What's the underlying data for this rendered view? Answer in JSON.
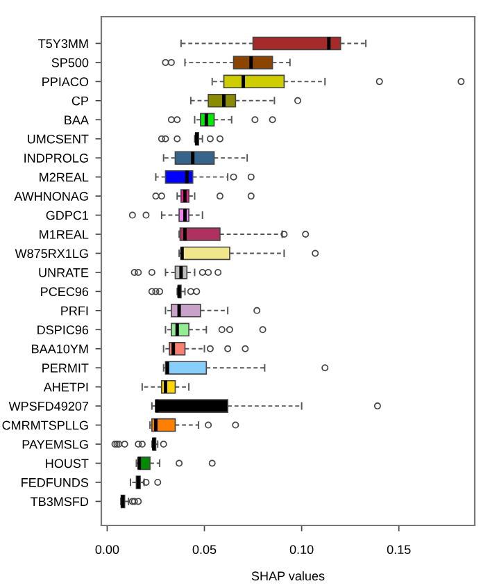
{
  "chart_data": {
    "type": "box",
    "orientation": "horizontal",
    "xlabel": "SHAP values",
    "grid": false,
    "legend": false,
    "xlim": [
      -0.003,
      0.189
    ],
    "xticks": [
      {
        "value": 0,
        "label": "0.00"
      },
      {
        "value": 0.05,
        "label": "0.05"
      },
      {
        "value": 0.1,
        "label": "0.10"
      },
      {
        "value": 0.15,
        "label": "0.15"
      }
    ],
    "categories": [
      "T5Y3MM",
      "SP500",
      "PPIACO",
      "CP",
      "BAA",
      "UMCSENT",
      "INDPROLG",
      "M2REAL",
      "AWHNONAG",
      "GDPC1",
      "M1REAL",
      "W875RX1LG",
      "UNRATE",
      "PCEC96",
      "PRFI",
      "DSPIC96",
      "BAA10YM",
      "PERMIT",
      "AHETPI",
      "WPSFD49207",
      "CMRMTSPLLG",
      "PAYEMSLG",
      "HOUST",
      "FEDFUNDS",
      "TB3MSFD"
    ],
    "colors": [
      "#a52a2a",
      "#8b4500",
      "#cdcd00",
      "#8b8b00",
      "#00ee00",
      "#00868b",
      "#36648b",
      "#0000ff",
      "#ff1493",
      "#ee82ee",
      "#b03060",
      "#f0e68c",
      "#bebebe",
      "#cd853f",
      "#c8a2c8",
      "#90ee90",
      "#fa8072",
      "#87cefa",
      "#ffd700",
      "#000000",
      "#ff7f00",
      "#000000",
      "#008b00",
      "#8b0000",
      "#1874cd"
    ],
    "boxes": [
      {
        "low": 0.038,
        "q1": 0.075,
        "median": 0.114,
        "q3": 0.12,
        "high": 0.133
      },
      {
        "low": 0.04,
        "q1": 0.065,
        "median": 0.074,
        "q3": 0.085,
        "high": 0.094,
        "outliers": [
          0.03,
          0.033
        ]
      },
      {
        "low": 0.054,
        "q1": 0.06,
        "median": 0.07,
        "q3": 0.091,
        "high": 0.112,
        "outliers": [
          0.14,
          0.182
        ]
      },
      {
        "low": 0.043,
        "q1": 0.052,
        "median": 0.06,
        "q3": 0.066,
        "high": 0.086,
        "outliers": [
          0.098
        ]
      },
      {
        "low": 0.045,
        "q1": 0.048,
        "median": 0.051,
        "q3": 0.055,
        "high": 0.064,
        "outliers": [
          0.033,
          0.036,
          0.076,
          0.085
        ]
      },
      {
        "low": 0.045,
        "q1": 0.0455,
        "median": 0.046,
        "q3": 0.047,
        "high": 0.049,
        "outliers": [
          0.028,
          0.03,
          0.036,
          0.053,
          0.058
        ]
      },
      {
        "low": 0.029,
        "q1": 0.035,
        "median": 0.044,
        "q3": 0.055,
        "high": 0.072
      },
      {
        "low": 0.025,
        "q1": 0.03,
        "median": 0.041,
        "q3": 0.044,
        "high": 0.062,
        "outliers": [
          0.065,
          0.074
        ]
      },
      {
        "low": 0.036,
        "q1": 0.038,
        "median": 0.04,
        "q3": 0.042,
        "high": 0.045,
        "outliers": [
          0.025,
          0.028,
          0.058,
          0.074
        ]
      },
      {
        "low": 0.028,
        "q1": 0.037,
        "median": 0.04,
        "q3": 0.042,
        "high": 0.049,
        "outliers": [
          0.013,
          0.02
        ]
      },
      {
        "low": 0.037,
        "q1": 0.0375,
        "median": 0.04,
        "q3": 0.058,
        "high": 0.09,
        "outliers": [
          0.091,
          0.102
        ]
      },
      {
        "low": 0.037,
        "q1": 0.038,
        "median": 0.0385,
        "q3": 0.063,
        "high": 0.091,
        "outliers": [
          0.107
        ]
      },
      {
        "low": 0.03,
        "q1": 0.035,
        "median": 0.038,
        "q3": 0.041,
        "high": 0.045,
        "outliers": [
          0.014,
          0.016,
          0.023,
          0.049,
          0.052,
          0.057
        ]
      },
      {
        "low": 0.036,
        "q1": 0.0365,
        "median": 0.037,
        "q3": 0.038,
        "high": 0.04,
        "outliers": [
          0.023,
          0.025,
          0.027,
          0.043,
          0.046
        ]
      },
      {
        "low": 0.03,
        "q1": 0.033,
        "median": 0.037,
        "q3": 0.048,
        "high": 0.062,
        "outliers": [
          0.077
        ]
      },
      {
        "low": 0.03,
        "q1": 0.033,
        "median": 0.036,
        "q3": 0.042,
        "high": 0.051,
        "outliers": [
          0.059,
          0.063,
          0.08
        ]
      },
      {
        "low": 0.029,
        "q1": 0.032,
        "median": 0.034,
        "q3": 0.04,
        "high": 0.05,
        "outliers": [
          0.053,
          0.062,
          0.071
        ]
      },
      {
        "low": 0.029,
        "q1": 0.03,
        "median": 0.031,
        "q3": 0.051,
        "high": 0.081,
        "outliers": [
          0.112
        ]
      },
      {
        "low": 0.018,
        "q1": 0.028,
        "median": 0.03,
        "q3": 0.035,
        "high": 0.042
      },
      {
        "low": 0.023,
        "q1": 0.025,
        "median": 0.0255,
        "q3": 0.062,
        "high": 0.1,
        "outliers": [
          0.139
        ]
      },
      {
        "low": 0.022,
        "q1": 0.023,
        "median": 0.025,
        "q3": 0.035,
        "high": 0.047,
        "outliers": [
          0.052,
          0.066
        ]
      },
      {
        "low": 0.023,
        "q1": 0.0235,
        "median": 0.024,
        "q3": 0.025,
        "high": 0.026,
        "outliers": [
          0.004,
          0.005,
          0.006,
          0.009,
          0.016,
          0.018,
          0.029
        ]
      },
      {
        "low": 0.015,
        "q1": 0.016,
        "median": 0.0165,
        "q3": 0.022,
        "high": 0.027,
        "outliers": [
          0.037,
          0.054
        ]
      },
      {
        "low": 0.012,
        "q1": 0.015,
        "median": 0.016,
        "q3": 0.017,
        "high": 0.019,
        "outliers": [
          0.02,
          0.026
        ]
      },
      {
        "low": 0.007,
        "q1": 0.0072,
        "median": 0.008,
        "q3": 0.009,
        "high": 0.011,
        "outliers": [
          0.013,
          0.014,
          0.016
        ]
      }
    ]
  }
}
